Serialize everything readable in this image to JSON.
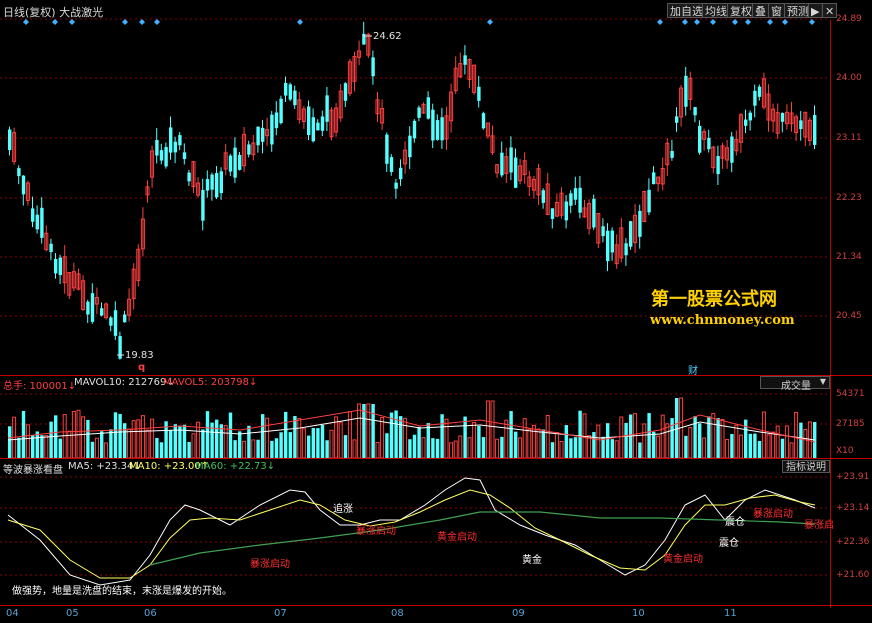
{
  "header": {
    "title": "日线(复权)  大战激光"
  },
  "toolbar": {
    "add_watch": "加自选",
    "fenshi": "均线",
    "fuquan": "复权",
    "overlay": "叠",
    "window": "窗",
    "warning": "预测",
    "nav": "▶┃"
  },
  "price_axis": {
    "ticks": [
      "24.89",
      "24.00",
      "23.11",
      "22.23",
      "21.34",
      "20.45"
    ],
    "high_marker": "24.62",
    "low_marker": "19.83"
  },
  "markers": {
    "q_label": "q",
    "cai_label": "财"
  },
  "watermark": {
    "name": "第一股票公式网",
    "url": "www.chnmoney.com"
  },
  "volume_panel": {
    "label_total": "总手: 100001↓",
    "label_mavol10": "MAVOL10: 212769↓",
    "label_mavol5": "MAVOL5: 203798↓",
    "selector": "成交量",
    "ticks": [
      "54371",
      "27185",
      "X10"
    ]
  },
  "osc_panel": {
    "title": "等波暴涨看盘",
    "ma5": "MA5: +23.34↓",
    "ma10": "MA10: +23.00↑",
    "ma60": "MA60: +22.73↓",
    "help_button": "指标说明",
    "ticks": [
      "+23.91",
      "+23.14",
      "+22.36",
      "+21.60"
    ],
    "annotations": {
      "zhuizhang": "追涨",
      "baozhang1": "暴涨启动",
      "baozhang2": "暴涨启动",
      "huangjin1": "黄金启动",
      "huangjin2": "黄金",
      "huangjin3": "黄金启动",
      "zhencang1": "震仓",
      "zhencang2": "震仓",
      "baozhang3": "暴涨启动",
      "baozhang4": "暴涨启"
    },
    "footer_text": "做强势，地量是洗盘的结束，末涨是爆发的开始。"
  },
  "time_axis": {
    "months": [
      "04",
      "05",
      "06",
      "07",
      "08",
      "09",
      "10",
      "11"
    ]
  },
  "colors": {
    "up": "#ff4040",
    "down": "#54ffff",
    "grid": "#8b0000",
    "axis": "#c00000"
  }
}
